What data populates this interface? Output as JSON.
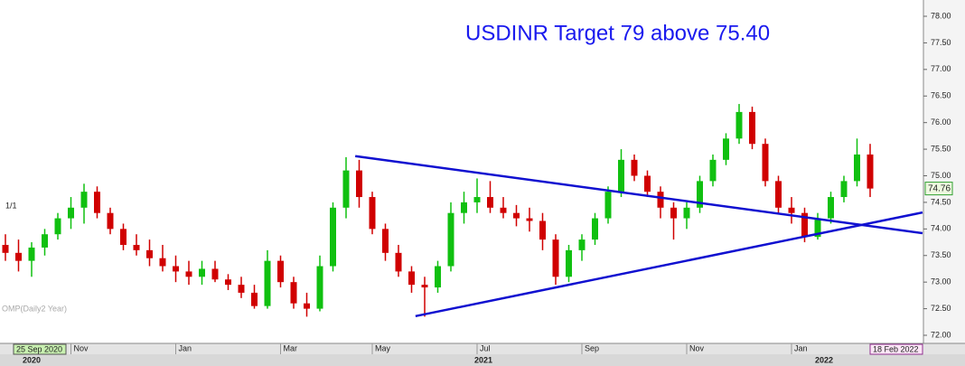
{
  "chart_data": {
    "type": "candlestick",
    "title": "USDINR Target 79 above 75.40",
    "pane_label": "1/1",
    "indicator_label": "OMP(Daily2 Year)",
    "start_label": "25 Sep 2020",
    "end_label": "18 Feb 2022",
    "last_price": 74.76,
    "year_labels": [
      "2020",
      "2021",
      "2022"
    ],
    "categories": [
      null,
      null,
      null,
      null,
      null,
      "Nov",
      null,
      null,
      null,
      null,
      null,
      null,
      null,
      "Jan",
      null,
      null,
      null,
      null,
      null,
      null,
      null,
      "Mar",
      null,
      null,
      null,
      null,
      null,
      null,
      "May",
      null,
      null,
      null,
      null,
      null,
      null,
      null,
      "Jul",
      null,
      null,
      null,
      null,
      null,
      null,
      null,
      "Sep",
      null,
      null,
      null,
      null,
      null,
      null,
      null,
      "Nov",
      null,
      null,
      null,
      null,
      null,
      null,
      null,
      "Jan",
      null,
      null,
      null,
      null,
      null,
      null
    ],
    "ohlc": [
      [
        73.7,
        73.9,
        73.4,
        73.55
      ],
      [
        73.55,
        73.8,
        73.2,
        73.4
      ],
      [
        73.4,
        73.75,
        73.1,
        73.65
      ],
      [
        73.65,
        74.0,
        73.5,
        73.9
      ],
      [
        73.9,
        74.3,
        73.8,
        74.2
      ],
      [
        74.2,
        74.6,
        74.0,
        74.4
      ],
      [
        74.4,
        74.85,
        74.1,
        74.7
      ],
      [
        74.7,
        74.8,
        74.2,
        74.3
      ],
      [
        74.3,
        74.4,
        73.9,
        74.0
      ],
      [
        74.0,
        74.1,
        73.6,
        73.7
      ],
      [
        73.7,
        73.9,
        73.5,
        73.6
      ],
      [
        73.6,
        73.8,
        73.3,
        73.45
      ],
      [
        73.45,
        73.7,
        73.2,
        73.3
      ],
      [
        73.3,
        73.5,
        73.0,
        73.2
      ],
      [
        73.2,
        73.4,
        72.95,
        73.1
      ],
      [
        73.1,
        73.4,
        72.95,
        73.25
      ],
      [
        73.25,
        73.4,
        73.0,
        73.05
      ],
      [
        73.05,
        73.15,
        72.85,
        72.95
      ],
      [
        72.95,
        73.1,
        72.7,
        72.8
      ],
      [
        72.8,
        72.95,
        72.5,
        72.55
      ],
      [
        72.55,
        73.6,
        72.5,
        73.4
      ],
      [
        73.4,
        73.5,
        72.9,
        73.0
      ],
      [
        73.0,
        73.1,
        72.5,
        72.6
      ],
      [
        72.6,
        72.8,
        72.35,
        72.5
      ],
      [
        72.5,
        73.5,
        72.45,
        73.3
      ],
      [
        73.3,
        74.5,
        73.2,
        74.4
      ],
      [
        74.4,
        75.35,
        74.2,
        75.1
      ],
      [
        75.1,
        75.3,
        74.4,
        74.6
      ],
      [
        74.6,
        74.7,
        73.9,
        74.0
      ],
      [
        74.0,
        74.1,
        73.4,
        73.55
      ],
      [
        73.55,
        73.7,
        73.1,
        73.2
      ],
      [
        73.2,
        73.3,
        72.8,
        72.95
      ],
      [
        72.95,
        73.1,
        72.35,
        72.9
      ],
      [
        72.9,
        73.4,
        72.8,
        73.3
      ],
      [
        73.3,
        74.5,
        73.2,
        74.3
      ],
      [
        74.3,
        74.7,
        74.1,
        74.5
      ],
      [
        74.5,
        74.95,
        74.3,
        74.6
      ],
      [
        74.6,
        74.9,
        74.3,
        74.4
      ],
      [
        74.4,
        74.6,
        74.2,
        74.3
      ],
      [
        74.3,
        74.45,
        74.05,
        74.2
      ],
      [
        74.2,
        74.4,
        73.95,
        74.15
      ],
      [
        74.15,
        74.3,
        73.6,
        73.8
      ],
      [
        73.8,
        73.9,
        72.95,
        73.1
      ],
      [
        73.1,
        73.7,
        73.0,
        73.6
      ],
      [
        73.6,
        73.9,
        73.4,
        73.8
      ],
      [
        73.8,
        74.3,
        73.7,
        74.2
      ],
      [
        74.2,
        74.8,
        74.1,
        74.7
      ],
      [
        74.7,
        75.5,
        74.6,
        75.3
      ],
      [
        75.3,
        75.4,
        74.9,
        75.0
      ],
      [
        75.0,
        75.1,
        74.6,
        74.7
      ],
      [
        74.7,
        74.8,
        74.2,
        74.4
      ],
      [
        74.4,
        74.5,
        73.8,
        74.2
      ],
      [
        74.2,
        74.5,
        74.0,
        74.4
      ],
      [
        74.4,
        75.0,
        74.3,
        74.9
      ],
      [
        74.9,
        75.4,
        74.8,
        75.3
      ],
      [
        75.3,
        75.8,
        75.2,
        75.7
      ],
      [
        75.7,
        76.35,
        75.6,
        76.2
      ],
      [
        76.2,
        76.3,
        75.5,
        75.6
      ],
      [
        75.6,
        75.7,
        74.8,
        74.9
      ],
      [
        74.9,
        75.0,
        74.3,
        74.4
      ],
      [
        74.4,
        74.6,
        74.1,
        74.3
      ],
      [
        74.3,
        74.4,
        73.75,
        73.85
      ],
      [
        73.85,
        74.3,
        73.8,
        74.2
      ],
      [
        74.2,
        74.7,
        74.1,
        74.6
      ],
      [
        74.6,
        75.0,
        74.5,
        74.9
      ],
      [
        74.9,
        75.7,
        74.8,
        75.4
      ],
      [
        75.4,
        75.6,
        74.6,
        74.76
      ]
    ],
    "up_color": "#10c010",
    "down_color": "#d00000",
    "trendlines": [
      {
        "x": [
          26.7,
          70.0
        ],
        "y": [
          75.37,
          73.92
        ],
        "color": "#1010d0"
      },
      {
        "x": [
          31.3,
          70.0
        ],
        "y": [
          72.36,
          74.31
        ],
        "color": "#1010d0"
      }
    ],
    "ylim": [
      72.0,
      78.0
    ],
    "yticks": [
      {
        "value": 72.0,
        "label": "72.00"
      },
      {
        "value": 72.5,
        "label": "72.50"
      },
      {
        "value": 73.0,
        "label": "73.00"
      },
      {
        "value": 73.5,
        "label": "73.50"
      },
      {
        "value": 74.0,
        "label": "74.00"
      },
      {
        "value": 74.5,
        "label": "74.50"
      },
      {
        "value": 75.0,
        "label": "75.00"
      },
      {
        "value": 75.5,
        "label": "75.50"
      },
      {
        "value": 76.0,
        "label": "76.00"
      },
      {
        "value": 76.5,
        "label": "76.50"
      },
      {
        "value": 77.0,
        "label": "77.00"
      },
      {
        "value": 77.5,
        "label": "77.50"
      },
      {
        "value": 78.0,
        "label": "78.00"
      }
    ]
  }
}
